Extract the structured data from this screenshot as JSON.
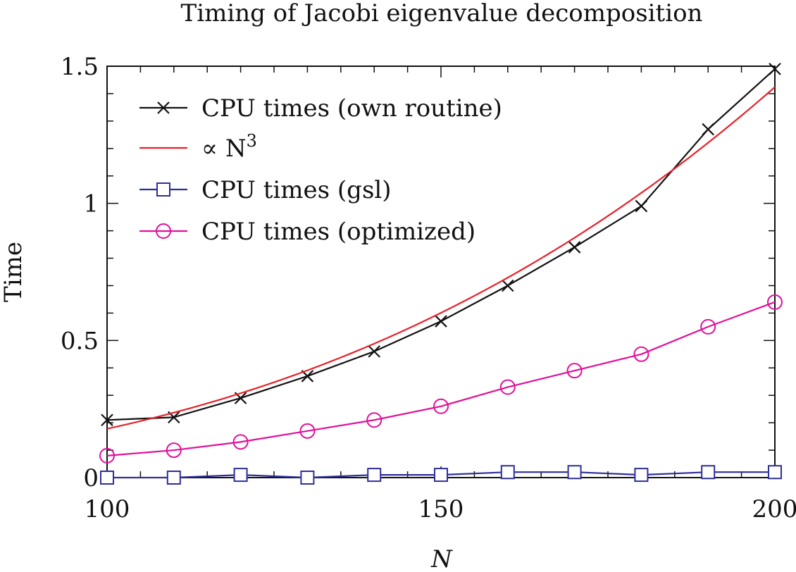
{
  "chart_data": {
    "type": "line",
    "title": "Timing of Jacobi eigenvalue decomposition",
    "xlabel": "N",
    "ylabel": "Time",
    "xlim": [
      100,
      200
    ],
    "ylim": [
      0,
      1.5
    ],
    "xticks": [
      100,
      150,
      200
    ],
    "xtick_labels": [
      "100",
      "150",
      "200"
    ],
    "yticks": [
      0,
      0.5,
      1,
      1.5
    ],
    "ytick_labels": [
      "0",
      "0.5",
      "1",
      "1.5"
    ],
    "x_minor_step": 5,
    "y_minor_step": 0.1,
    "grid": false,
    "legend_position": "top-left",
    "series": [
      {
        "name": "CPU times (own routine)",
        "color": "#111111",
        "marker": "x",
        "x": [
          100,
          110,
          120,
          130,
          140,
          150,
          160,
          170,
          180,
          190,
          200
        ],
        "y": [
          0.21,
          0.22,
          0.29,
          0.37,
          0.46,
          0.57,
          0.7,
          0.84,
          0.99,
          1.27,
          1.49
        ]
      },
      {
        "name": "∝ N",
        "name_superscript": "3",
        "color": "#e8202a",
        "marker": "none",
        "function": "cubic",
        "coefficient": 1.78e-07
      },
      {
        "name": "CPU times (gsl)",
        "color": "#2e2e9a",
        "marker": "square",
        "x": [
          100,
          110,
          120,
          130,
          140,
          150,
          160,
          170,
          180,
          190,
          200
        ],
        "y": [
          0.0,
          0.0,
          0.01,
          0.0,
          0.01,
          0.01,
          0.02,
          0.02,
          0.01,
          0.02,
          0.02
        ]
      },
      {
        "name": "CPU times (optimized)",
        "color": "#e0109a",
        "marker": "circle",
        "x": [
          100,
          110,
          120,
          130,
          140,
          150,
          160,
          170,
          180,
          190,
          200
        ],
        "y": [
          0.08,
          0.1,
          0.13,
          0.17,
          0.21,
          0.26,
          0.33,
          0.39,
          0.45,
          0.55,
          0.64
        ]
      }
    ]
  }
}
